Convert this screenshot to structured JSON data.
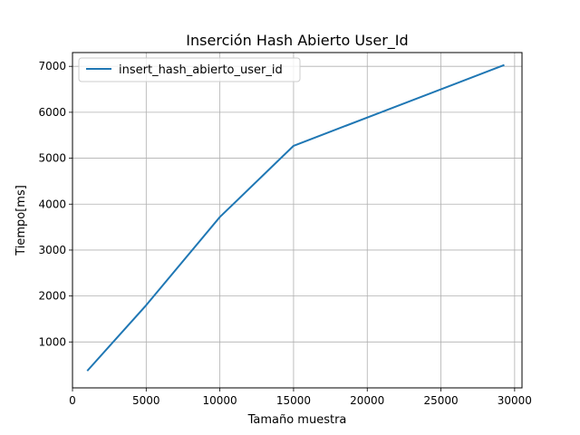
{
  "chart_data": {
    "type": "line",
    "title": "Inserción Hash Abierto User_Id",
    "xlabel": "Tamaño muestra",
    "ylabel": "Tiempo[ms]",
    "xlim": [
      0,
      30500
    ],
    "ylim": [
      0,
      7300
    ],
    "xticks": [
      0,
      5000,
      10000,
      15000,
      20000,
      25000,
      30000
    ],
    "yticks": [
      1000,
      2000,
      3000,
      4000,
      5000,
      6000,
      7000
    ],
    "grid": true,
    "legend_position": "top-left",
    "series": [
      {
        "name": "insert_hash_abierto_user_id",
        "color": "#1f77b4",
        "x": [
          1000,
          5000,
          10000,
          15000,
          29300
        ],
        "y": [
          370,
          1800,
          3720,
          5270,
          7030
        ]
      }
    ]
  }
}
